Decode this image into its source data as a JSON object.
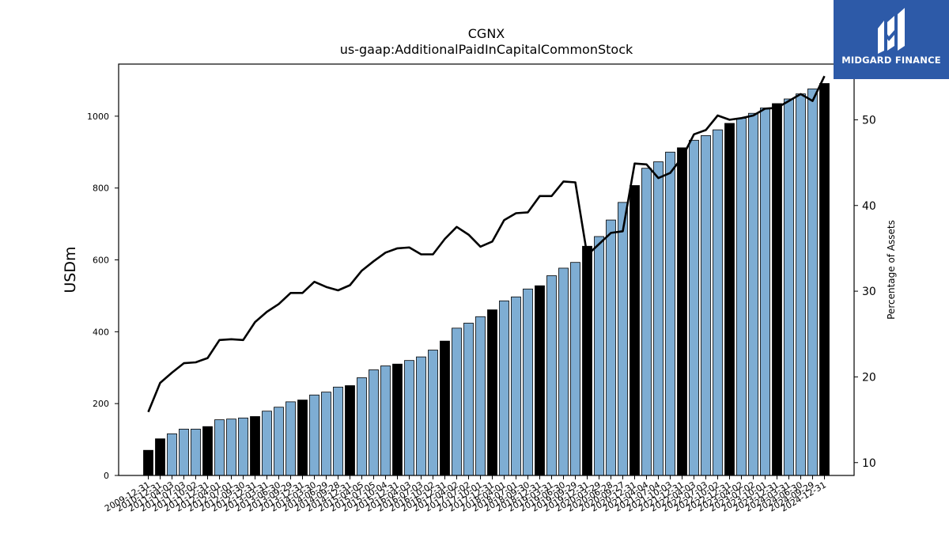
{
  "brand": {
    "name": "MIDGARD FINANCE",
    "bg_color": "#2d5aa8"
  },
  "chart_data": {
    "type": "bar",
    "title": "CGNX",
    "subtitle": "us-gaap:AdditionalPaidInCapitalCommonStock",
    "ylabel": "USDm",
    "y2label": "Percentage of Assets",
    "ylim": [
      0,
      1145
    ],
    "y2lim": [
      8.5,
      56.5
    ],
    "yticks": [
      0,
      200,
      400,
      600,
      800,
      1000
    ],
    "y2ticks": [
      10,
      20,
      30,
      40,
      50
    ],
    "bar_color": "#7eadd3",
    "highlight_color": "#000000",
    "line_color": "#000000",
    "categories": [
      "2009-12-31",
      "2010-12-31",
      "2011-04-03",
      "2011-07-03",
      "2011-10-02",
      "2011-12-31",
      "2012-04-01",
      "2012-07-01",
      "2012-09-30",
      "2012-12-31",
      "2013-03-31",
      "2013-06-30",
      "2013-09-29",
      "2013-12-31",
      "2014-03-30",
      "2014-06-29",
      "2014-09-28",
      "2014-12-31",
      "2015-04-05",
      "2015-07-05",
      "2015-10-04",
      "2015-12-31",
      "2016-04-03",
      "2016-07-03",
      "2016-10-02",
      "2016-12-31",
      "2017-04-02",
      "2017-07-02",
      "2017-10-01",
      "2017-12-31",
      "2018-04-01",
      "2018-07-01",
      "2018-09-30",
      "2018-12-31",
      "2019-03-31",
      "2019-06-30",
      "2019-09-29",
      "2019-12-31",
      "2020-03-29",
      "2020-06-28",
      "2020-09-27",
      "2020-12-31",
      "2021-04-04",
      "2021-07-04",
      "2021-10-03",
      "2021-12-31",
      "2022-04-03",
      "2022-07-03",
      "2022-10-02",
      "2022-12-31",
      "2023-04-02",
      "2023-07-02",
      "2023-10-01",
      "2023-12-31",
      "2024-03-31",
      "2024-06-30",
      "2024-09-29",
      "2024-12-31"
    ],
    "series": [
      {
        "type": "bar",
        "values": [
          70,
          102,
          116,
          129,
          129,
          136,
          155,
          157,
          160,
          164,
          179,
          190,
          205,
          210,
          224,
          232,
          246,
          250,
          272,
          294,
          305,
          310,
          320,
          330,
          349,
          374,
          410,
          424,
          442,
          461,
          486,
          497,
          519,
          528,
          556,
          577,
          593,
          638,
          665,
          711,
          760,
          807,
          855,
          873,
          900,
          912,
          933,
          946,
          962,
          980,
          994,
          1008,
          1023,
          1035,
          1048,
          1062,
          1076,
          1091
        ],
        "highlight": [
          true,
          true,
          false,
          false,
          false,
          true,
          false,
          false,
          false,
          true,
          false,
          false,
          false,
          true,
          false,
          false,
          false,
          true,
          false,
          false,
          false,
          true,
          false,
          false,
          false,
          true,
          false,
          false,
          false,
          true,
          false,
          false,
          false,
          true,
          false,
          false,
          false,
          true,
          false,
          false,
          false,
          true,
          false,
          false,
          false,
          true,
          false,
          false,
          false,
          true,
          false,
          false,
          false,
          true,
          false,
          false,
          false,
          true
        ]
      },
      {
        "type": "line",
        "axis": "right",
        "values": [
          15.9,
          19.3,
          20.5,
          21.6,
          21.7,
          22.2,
          24.3,
          24.4,
          24.3,
          26.4,
          27.6,
          28.5,
          29.8,
          29.8,
          31.1,
          30.5,
          30.1,
          30.7,
          32.4,
          33.5,
          34.5,
          35.0,
          35.1,
          34.3,
          34.3,
          36.1,
          37.5,
          36.6,
          35.2,
          35.8,
          38.3,
          39.1,
          39.2,
          41.1,
          41.1,
          42.8,
          42.7,
          34.2,
          35.5,
          36.8,
          37.0,
          44.9,
          44.8,
          43.2,
          43.8,
          45.6,
          48.3,
          48.8,
          50.5,
          50.0,
          50.2,
          50.5,
          51.3,
          51.4,
          52.2,
          53.0,
          52.2,
          55.1
        ]
      }
    ]
  }
}
